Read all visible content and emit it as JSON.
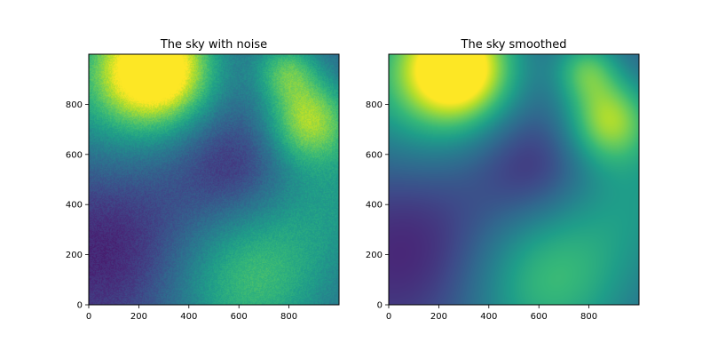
{
  "chart_data": [
    {
      "type": "heatmap",
      "title": "The sky with noise",
      "xlabel": "",
      "ylabel": "",
      "xlim": [
        0,
        1000
      ],
      "ylim": [
        0,
        1000
      ],
      "xticks": [
        0,
        200,
        400,
        600,
        800
      ],
      "yticks": [
        0,
        200,
        400,
        600,
        800
      ],
      "colormap": "viridis",
      "noise": true,
      "grid": false,
      "blobs": [
        {
          "x": 270,
          "y": 950,
          "r": 150,
          "a": 0.75
        },
        {
          "x": 880,
          "y": 740,
          "r": 120,
          "a": 0.5
        },
        {
          "x": 790,
          "y": 940,
          "r": 90,
          "a": 0.35
        },
        {
          "x": 130,
          "y": 860,
          "r": 250,
          "a": 0.3
        },
        {
          "x": 660,
          "y": 110,
          "r": 220,
          "a": 0.3
        },
        {
          "x": 420,
          "y": 70,
          "r": 280,
          "a": 0.16
        },
        {
          "x": 1000,
          "y": 450,
          "r": 220,
          "a": 0.2
        },
        {
          "x": 150,
          "y": 200,
          "r": 280,
          "a": -0.28
        },
        {
          "x": 580,
          "y": 550,
          "r": 160,
          "a": -0.2
        }
      ]
    },
    {
      "type": "heatmap",
      "title": "The sky smoothed",
      "xlabel": "",
      "ylabel": "",
      "xlim": [
        0,
        1000
      ],
      "ylim": [
        0,
        1000
      ],
      "xticks": [
        0,
        200,
        400,
        600,
        800
      ],
      "yticks": [
        0,
        200,
        400,
        600,
        800
      ],
      "colormap": "viridis",
      "noise": false,
      "grid": false,
      "blobs": [
        {
          "x": 270,
          "y": 950,
          "r": 150,
          "a": 0.75
        },
        {
          "x": 880,
          "y": 740,
          "r": 120,
          "a": 0.5
        },
        {
          "x": 790,
          "y": 940,
          "r": 90,
          "a": 0.35
        },
        {
          "x": 130,
          "y": 860,
          "r": 250,
          "a": 0.3
        },
        {
          "x": 660,
          "y": 110,
          "r": 220,
          "a": 0.3
        },
        {
          "x": 420,
          "y": 70,
          "r": 280,
          "a": 0.16
        },
        {
          "x": 1000,
          "y": 450,
          "r": 220,
          "a": 0.2
        },
        {
          "x": 150,
          "y": 200,
          "r": 280,
          "a": -0.28
        },
        {
          "x": 580,
          "y": 550,
          "r": 160,
          "a": -0.2
        }
      ]
    }
  ]
}
